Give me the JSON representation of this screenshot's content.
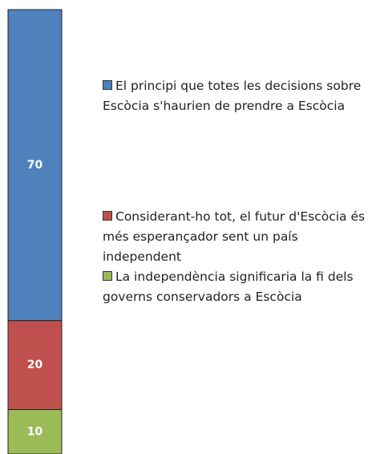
{
  "chart_data": {
    "type": "bar",
    "stacked": true,
    "categories": [
      null
    ],
    "series": [
      {
        "name": "El principi que totes les decisions sobre Escòcia s'haurien de prendre a Escòcia",
        "color": "#4f81bd",
        "values": [
          70
        ]
      },
      {
        "name": "Considerant-ho tot, el futur d'Escòcia és més esperançador sent un país independent",
        "color": "#c0504d",
        "values": [
          20
        ]
      },
      {
        "name": "La independència significaria la fi dels governs conservadors a Escòcia",
        "color": "#9bbb59",
        "values": [
          10
        ]
      }
    ]
  }
}
